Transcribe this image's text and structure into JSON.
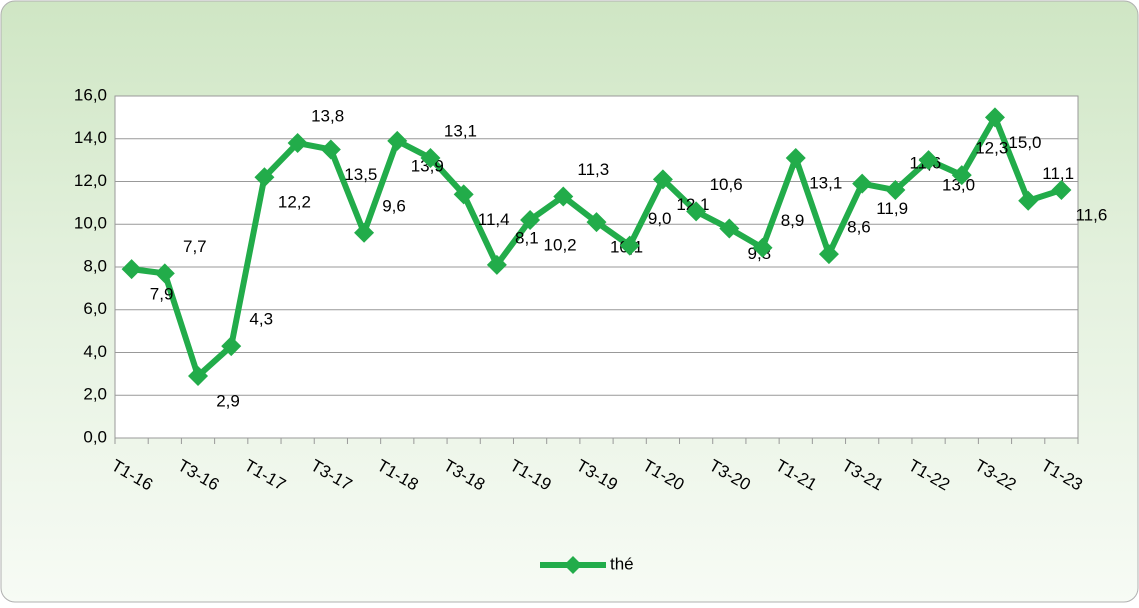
{
  "chart_data": {
    "type": "line",
    "categories": [
      "T1-16",
      null,
      "T3-16",
      null,
      "T1-17",
      null,
      "T3-17",
      null,
      "T1-18",
      null,
      "T3-18",
      null,
      "T1-19",
      null,
      "T3-19",
      null,
      "T1-20",
      null,
      "T3-20",
      null,
      "T1-21",
      null,
      "T3-21",
      null,
      "T1-22",
      null,
      "T3-22",
      null,
      "T1-23"
    ],
    "series": [
      {
        "name": "thé",
        "color": "#22ac4a",
        "values": [
          7.9,
          7.7,
          2.9,
          4.3,
          12.2,
          13.8,
          13.5,
          9.6,
          13.9,
          13.1,
          11.4,
          8.1,
          10.2,
          11.3,
          10.1,
          9.0,
          12.1,
          10.6,
          9.8,
          8.9,
          13.1,
          8.6,
          11.9,
          11.6,
          13.0,
          12.3,
          15.0,
          11.1,
          11.6
        ],
        "value_labels": [
          "7,9",
          "7,7",
          "2,9",
          "4,3",
          "12,2",
          "13,8",
          "13,5",
          "9,6",
          "13,9",
          "13,1",
          "11,4",
          "8,1",
          "10,2",
          "11,3",
          "10,1",
          "9,0",
          "12,1",
          "10,6",
          "9,8",
          "8,9",
          "13,1",
          "8,6",
          "11,9",
          "11,6",
          "13,0",
          "12,3",
          "15,0",
          "11,1",
          "11,6"
        ]
      }
    ],
    "ylim": [
      0,
      16
    ],
    "yticks": [
      {
        "value": 0,
        "label": "0,0"
      },
      {
        "value": 2,
        "label": "2,0"
      },
      {
        "value": 4,
        "label": "4,0"
      },
      {
        "value": 6,
        "label": "6,0"
      },
      {
        "value": 8,
        "label": "8,0"
      },
      {
        "value": 10,
        "label": "10,0"
      },
      {
        "value": 12,
        "label": "12,0"
      },
      {
        "value": 14,
        "label": "14,0"
      },
      {
        "value": 16,
        "label": "16,0"
      }
    ],
    "grid": true,
    "legend": "bottom"
  }
}
